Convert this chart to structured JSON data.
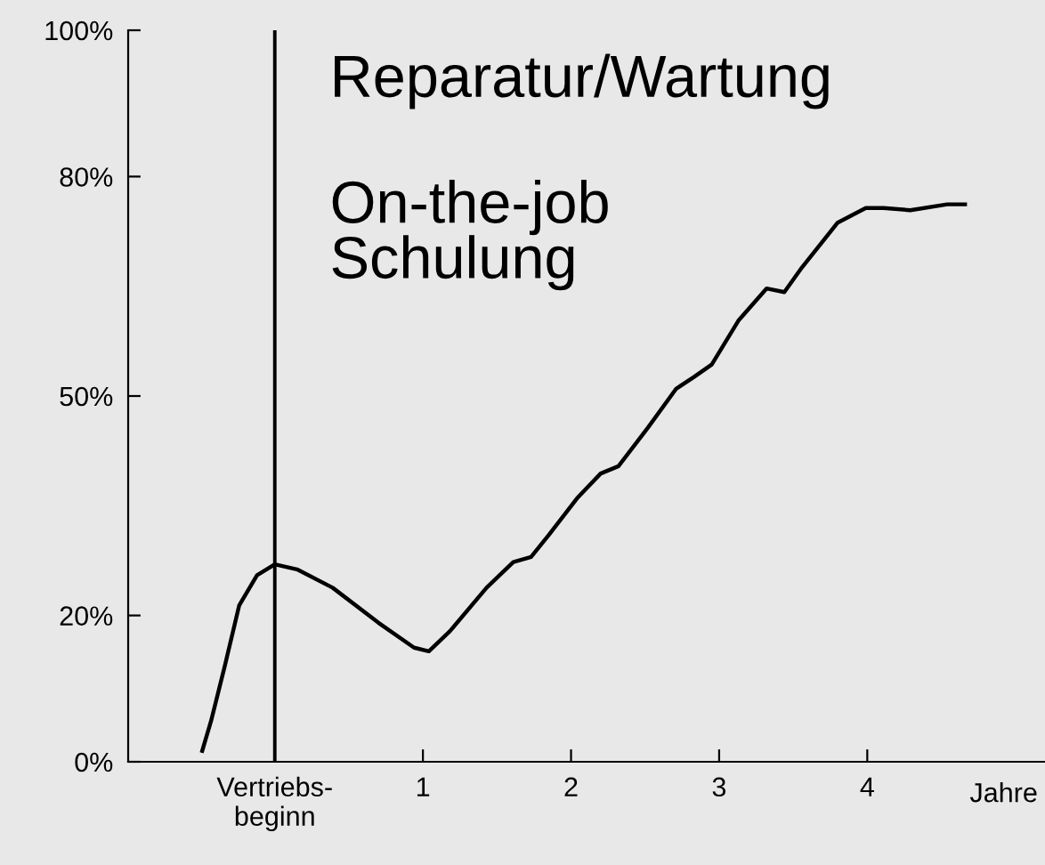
{
  "chart_data": {
    "type": "line",
    "xlabel": "Jahre",
    "x": [
      -0.49,
      -0.43,
      -0.34,
      -0.24,
      -0.12,
      0,
      0.15,
      0.39,
      0.7,
      0.94,
      1.04,
      1.18,
      1.43,
      1.61,
      1.73,
      1.85,
      2.04,
      2.2,
      2.32,
      2.52,
      2.71,
      2.83,
      2.95,
      3.13,
      3.32,
      3.44,
      3.56,
      3.8,
      3.99,
      4.11,
      4.29,
      4.54,
      4.66
    ],
    "series": [
      {
        "color": "#000000",
        "values": [
          1.5,
          5.6,
          12.9,
          21.4,
          25.5,
          27,
          26.3,
          23.8,
          19,
          15.6,
          15.1,
          17.8,
          23.8,
          27.3,
          28,
          31,
          36,
          39.4,
          40.4,
          45.7,
          51,
          52.6,
          54.3,
          60.3,
          64.7,
          64.2,
          67.6,
          73.7,
          75.7,
          75.7,
          75.4,
          76.2,
          76.2
        ]
      }
    ],
    "xlim": [
      -0.99,
      5.2
    ],
    "ylim": [
      0,
      100
    ],
    "xticks": [
      {
        "value": 0,
        "label": "Vertriebs-\nbeginn"
      },
      1,
      2,
      3,
      4
    ],
    "yticks": [
      {
        "value": 0,
        "label": "0%"
      },
      {
        "value": 20,
        "label": "20%"
      },
      {
        "value": 50,
        "label": "50%"
      },
      {
        "value": 80,
        "label": "80%"
      },
      {
        "value": 100,
        "label": "100%"
      }
    ],
    "ref_lines": [
      {
        "axis": "x",
        "value": 0,
        "color": "#000000"
      }
    ],
    "annotations": [
      "Reparatur/Wartung",
      "On-the-job\nSchulung"
    ],
    "grid": false,
    "legend": false
  }
}
